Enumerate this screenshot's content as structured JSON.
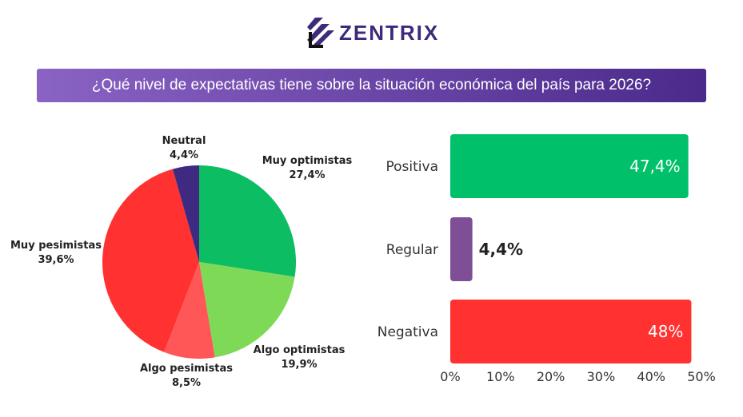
{
  "brand": {
    "name": "ZENTRIX",
    "primary": "#3d2a7a"
  },
  "title": "¿Qué nivel de expectativas tiene sobre la  situación económica del país para 2026?",
  "chart_data": [
    {
      "type": "pie",
      "start": "top",
      "direction": "clockwise",
      "slices": [
        {
          "label": "Muy optimistas",
          "value": 27.4,
          "text": "27,4%",
          "color": "#0dbd63"
        },
        {
          "label": "Algo optimistas",
          "value": 19.9,
          "text": "19,9%",
          "color": "#7ed957"
        },
        {
          "label": "Algo pesimistas",
          "value": 8.5,
          "text": "8,5%",
          "color": "#ff5757"
        },
        {
          "label": "Muy pesimistas",
          "value": 39.6,
          "text": "39,6%",
          "color": "#ff3131"
        },
        {
          "label": "Neutral",
          "value": 4.4,
          "text": "4,4%",
          "color": "#3e2a80"
        }
      ]
    },
    {
      "type": "bar",
      "orientation": "horizontal",
      "categories": [
        "Positiva",
        "Regular",
        "Negativa"
      ],
      "values": [
        47.4,
        4.4,
        48
      ],
      "value_labels": [
        "47,4%",
        "4,4%",
        "48%"
      ],
      "colors": [
        "#00c16a",
        "#7e4e96",
        "#ff3131"
      ],
      "xlim": [
        0,
        50
      ],
      "ticks": [
        "0%",
        "10%",
        "20%",
        "30%",
        "40%",
        "50%"
      ],
      "grid": false
    }
  ]
}
